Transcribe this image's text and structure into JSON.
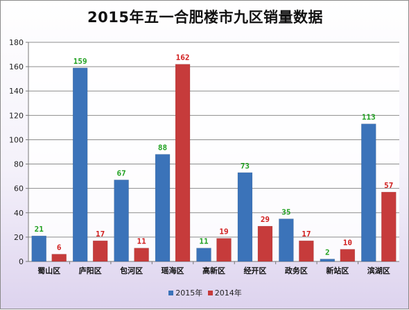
{
  "chart_data": {
    "type": "bar",
    "title": "2015年五一合肥楼市九区销量数据",
    "categories": [
      "蜀山区",
      "庐阳区",
      "包河区",
      "瑶海区",
      "高新区",
      "经开区",
      "政务区",
      "新站区",
      "滨湖区"
    ],
    "series": [
      {
        "name": "2015年",
        "color": "#3b73b9",
        "label_color": "#1fa01f",
        "values": [
          21,
          159,
          67,
          88,
          11,
          73,
          35,
          2,
          113
        ]
      },
      {
        "name": "2014年",
        "color": "#c63b3b",
        "label_color": "#d01a1a",
        "values": [
          6,
          17,
          11,
          162,
          19,
          29,
          17,
          10,
          57
        ]
      }
    ],
    "ylim": [
      0,
      180
    ],
    "yticks": [
      0,
      20,
      40,
      60,
      80,
      100,
      120,
      140,
      160,
      180
    ],
    "grid": true,
    "legend_position": "bottom"
  }
}
